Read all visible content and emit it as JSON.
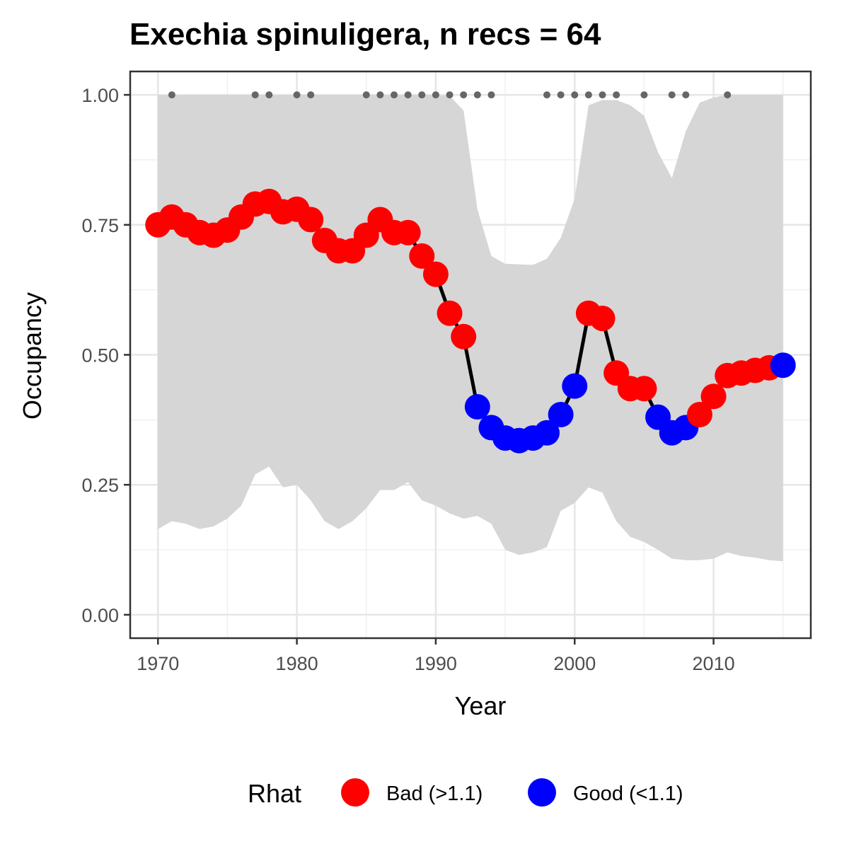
{
  "chart_data": {
    "type": "line",
    "title": "Exechia spinuligera, n recs = 64",
    "xlabel": "Year",
    "ylabel": "Occupancy",
    "xlim": [
      1968,
      2017
    ],
    "ylim": [
      -0.045,
      1.045
    ],
    "x_ticks": [
      1970,
      1980,
      1990,
      2000,
      2010
    ],
    "x_tick_labels": [
      "1970",
      "1980",
      "1990",
      "2000",
      "2010"
    ],
    "y_ticks": [
      0,
      0.25,
      0.5,
      0.75,
      1.0
    ],
    "y_tick_labels": [
      "0.00",
      "0.25",
      "0.50",
      "0.75",
      "1.00"
    ],
    "grid": true,
    "colors": {
      "bad": "#ff0000",
      "good": "#0000ff",
      "ribbon": "#d6d6d6",
      "line": "#000000",
      "record_dot": "#666666"
    },
    "x": [
      1970,
      1971,
      1972,
      1973,
      1974,
      1975,
      1976,
      1977,
      1978,
      1979,
      1980,
      1981,
      1982,
      1983,
      1984,
      1985,
      1986,
      1987,
      1988,
      1989,
      1990,
      1991,
      1992,
      1993,
      1994,
      1995,
      1996,
      1997,
      1998,
      1999,
      2000,
      2001,
      2002,
      2003,
      2004,
      2005,
      2006,
      2007,
      2008,
      2009,
      2010,
      2011,
      2012,
      2013,
      2014,
      2015
    ],
    "occupancy": [
      0.75,
      0.765,
      0.75,
      0.735,
      0.73,
      0.74,
      0.765,
      0.79,
      0.795,
      0.775,
      0.78,
      0.76,
      0.72,
      0.7,
      0.7,
      0.73,
      0.76,
      0.735,
      0.735,
      0.69,
      0.655,
      0.58,
      0.535,
      0.4,
      0.36,
      0.34,
      0.335,
      0.34,
      0.35,
      0.385,
      0.44,
      0.58,
      0.57,
      0.465,
      0.435,
      0.435,
      0.38,
      0.35,
      0.36,
      0.385,
      0.42,
      0.46,
      0.465,
      0.47,
      0.475,
      0.48
    ],
    "rhat": [
      "bad",
      "bad",
      "bad",
      "bad",
      "bad",
      "bad",
      "bad",
      "bad",
      "bad",
      "bad",
      "bad",
      "bad",
      "bad",
      "bad",
      "bad",
      "bad",
      "bad",
      "bad",
      "bad",
      "bad",
      "bad",
      "bad",
      "bad",
      "good",
      "good",
      "good",
      "good",
      "good",
      "good",
      "good",
      "good",
      "bad",
      "bad",
      "bad",
      "bad",
      "bad",
      "good",
      "good",
      "good",
      "bad",
      "bad",
      "bad",
      "bad",
      "bad",
      "bad",
      "good"
    ],
    "ribbon_lower": [
      0.165,
      0.18,
      0.175,
      0.165,
      0.17,
      0.185,
      0.21,
      0.27,
      0.285,
      0.245,
      0.25,
      0.22,
      0.18,
      0.165,
      0.18,
      0.205,
      0.24,
      0.24,
      0.255,
      0.22,
      0.21,
      0.195,
      0.185,
      0.19,
      0.175,
      0.125,
      0.115,
      0.12,
      0.13,
      0.2,
      0.215,
      0.245,
      0.235,
      0.18,
      0.15,
      0.14,
      0.125,
      0.108,
      0.105,
      0.105,
      0.108,
      0.12,
      0.113,
      0.11,
      0.105,
      0.103
    ],
    "ribbon_upper": [
      1,
      1,
      1,
      1,
      1,
      1,
      1,
      1,
      1,
      1,
      1,
      1,
      1,
      1,
      1,
      1,
      1,
      1,
      1,
      1,
      1,
      0.998,
      0.97,
      0.78,
      0.69,
      0.675,
      0.674,
      0.673,
      0.685,
      0.725,
      0.8,
      0.98,
      0.99,
      0.99,
      0.98,
      0.96,
      0.89,
      0.84,
      0.93,
      0.985,
      0.995,
      1,
      1,
      1,
      1,
      1
    ],
    "record_years": [
      1971,
      1977,
      1978,
      1980,
      1981,
      1985,
      1986,
      1987,
      1988,
      1989,
      1990,
      1991,
      1992,
      1993,
      1994,
      1998,
      1999,
      2000,
      2001,
      2002,
      2003,
      2005,
      2007,
      2008,
      2011
    ],
    "legend": {
      "title": "Rhat",
      "position": "bottom",
      "entries": [
        {
          "key": "bad",
          "label": "Bad (>1.1)"
        },
        {
          "key": "good",
          "label": "Good (<1.1)"
        }
      ]
    }
  }
}
